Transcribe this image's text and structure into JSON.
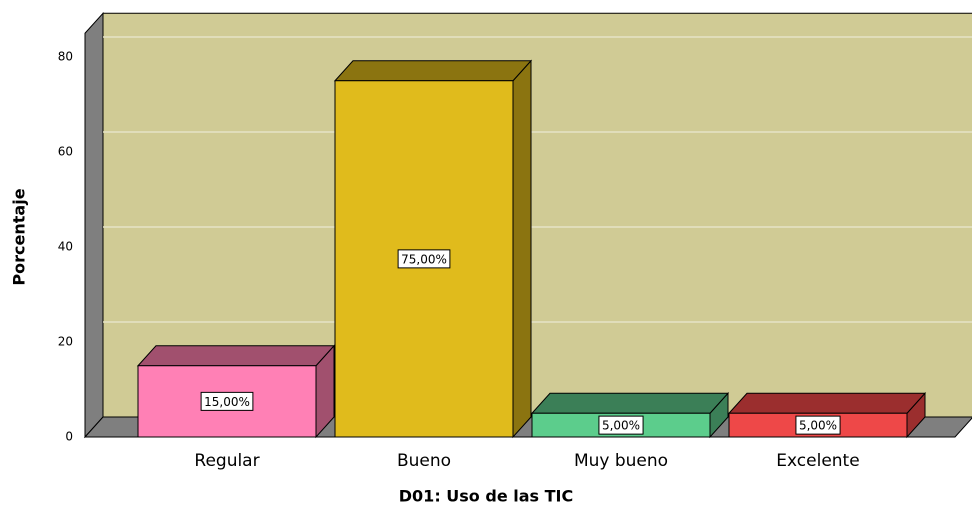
{
  "chart_data": {
    "type": "bar3d",
    "x_label": "D01: Uso de las TIC",
    "y_label": "Porcentaje",
    "categories": [
      "Regular",
      "Bueno",
      "Muy bueno",
      "Excelente"
    ],
    "values": [
      15,
      75,
      5,
      5
    ],
    "value_labels": [
      "15,00%",
      "75,00%",
      "5,00%",
      "5,00%"
    ],
    "colors": [
      "#ff80b5",
      "#e0bb1c",
      "#5ccd8c",
      "#ee4848"
    ],
    "side_colors": [
      "#a1506e",
      "#8b7410",
      "#3b7f57",
      "#9b2e2e"
    ],
    "ylim": [
      0,
      85
    ],
    "yticks": [
      0,
      20,
      40,
      60,
      80
    ],
    "grid": true
  }
}
